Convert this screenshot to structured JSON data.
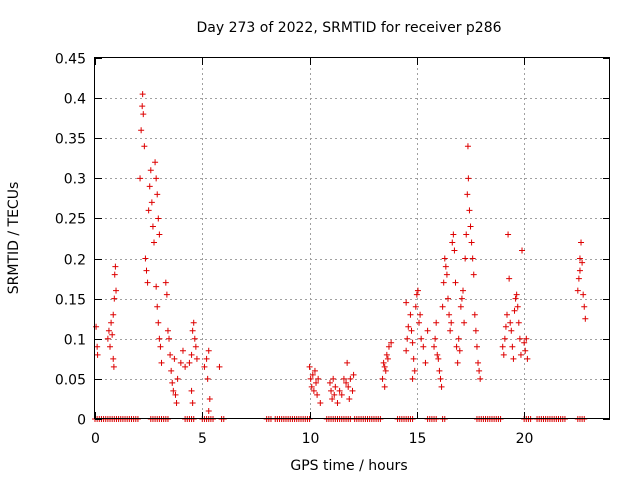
{
  "chart_data": {
    "type": "scatter",
    "title": "Day 273 of 2022, SRMTID for receiver p286",
    "xlabel": "GPS time / hours",
    "ylabel": "SRMTID / TECUs",
    "xlim": [
      0,
      24
    ],
    "ylim": [
      0,
      0.45
    ],
    "xticks": [
      0,
      5,
      10,
      15,
      20
    ],
    "yticks": [
      0,
      0.05,
      0.1,
      0.15,
      0.2,
      0.25,
      0.3,
      0.35,
      0.4,
      0.45
    ],
    "xtick_labels": [
      "0",
      "5",
      "10",
      "15",
      "20"
    ],
    "ytick_labels": [
      "0",
      "0.05",
      "0.1",
      "0.15",
      "0.2",
      "0.25",
      "0.3",
      "0.35",
      "0.4",
      "0.45"
    ],
    "grid": true,
    "marker": "+",
    "color": "#dd0000",
    "series": [
      {
        "name": "SRMTID",
        "points": [
          [
            0.05,
            0.115
          ],
          [
            0.1,
            0.09
          ],
          [
            0.12,
            0.08
          ],
          [
            0.6,
            0.1
          ],
          [
            0.65,
            0.11
          ],
          [
            0.7,
            0.09
          ],
          [
            0.75,
            0.12
          ],
          [
            0.8,
            0.105
          ],
          [
            0.85,
            0.13
          ],
          [
            0.9,
            0.15
          ],
          [
            0.92,
            0.18
          ],
          [
            0.95,
            0.19
          ],
          [
            0.98,
            0.16
          ],
          [
            0.85,
            0.075
          ],
          [
            0.88,
            0.065
          ],
          [
            2.1,
            0.3
          ],
          [
            2.15,
            0.36
          ],
          [
            2.2,
            0.39
          ],
          [
            2.22,
            0.405
          ],
          [
            2.25,
            0.38
          ],
          [
            2.3,
            0.34
          ],
          [
            2.35,
            0.2
          ],
          [
            2.4,
            0.185
          ],
          [
            2.45,
            0.17
          ],
          [
            2.5,
            0.26
          ],
          [
            2.55,
            0.29
          ],
          [
            2.6,
            0.31
          ],
          [
            2.65,
            0.27
          ],
          [
            2.7,
            0.24
          ],
          [
            2.75,
            0.22
          ],
          [
            2.8,
            0.32
          ],
          [
            2.85,
            0.3
          ],
          [
            2.9,
            0.28
          ],
          [
            2.95,
            0.25
          ],
          [
            3.0,
            0.23
          ],
          [
            2.85,
            0.165
          ],
          [
            2.9,
            0.14
          ],
          [
            2.95,
            0.12
          ],
          [
            3.0,
            0.1
          ],
          [
            3.05,
            0.09
          ],
          [
            3.1,
            0.07
          ],
          [
            3.3,
            0.17
          ],
          [
            3.35,
            0.155
          ],
          [
            3.4,
            0.11
          ],
          [
            3.45,
            0.1
          ],
          [
            3.5,
            0.08
          ],
          [
            3.55,
            0.06
          ],
          [
            3.6,
            0.045
          ],
          [
            3.65,
            0.035
          ],
          [
            3.7,
            0.075
          ],
          [
            3.75,
            0.03
          ],
          [
            3.8,
            0.02
          ],
          [
            3.85,
            0.05
          ],
          [
            4.0,
            0.07
          ],
          [
            4.1,
            0.085
          ],
          [
            4.2,
            0.065
          ],
          [
            4.4,
            0.07
          ],
          [
            4.5,
            0.08
          ],
          [
            4.55,
            0.11
          ],
          [
            4.6,
            0.12
          ],
          [
            4.65,
            0.1
          ],
          [
            4.7,
            0.09
          ],
          [
            4.75,
            0.075
          ],
          [
            4.5,
            0.035
          ],
          [
            4.55,
            0.02
          ],
          [
            5.1,
            0.065
          ],
          [
            5.2,
            0.075
          ],
          [
            5.25,
            0.05
          ],
          [
            5.3,
            0.085
          ],
          [
            5.35,
            0.025
          ],
          [
            5.3,
            0.01
          ],
          [
            5.8,
            0.065
          ],
          [
            10.0,
            0.065
          ],
          [
            10.05,
            0.05
          ],
          [
            10.1,
            0.04
          ],
          [
            10.15,
            0.055
          ],
          [
            10.2,
            0.035
          ],
          [
            10.25,
            0.06
          ],
          [
            10.3,
            0.045
          ],
          [
            10.35,
            0.03
          ],
          [
            10.4,
            0.05
          ],
          [
            10.5,
            0.02
          ],
          [
            10.95,
            0.045
          ],
          [
            11.0,
            0.035
          ],
          [
            11.05,
            0.025
          ],
          [
            11.1,
            0.05
          ],
          [
            11.15,
            0.03
          ],
          [
            11.2,
            0.04
          ],
          [
            11.3,
            0.02
          ],
          [
            11.4,
            0.035
          ],
          [
            11.5,
            0.03
          ],
          [
            11.6,
            0.05
          ],
          [
            11.7,
            0.045
          ],
          [
            11.75,
            0.07
          ],
          [
            11.8,
            0.04
          ],
          [
            11.85,
            0.025
          ],
          [
            11.9,
            0.05
          ],
          [
            12.0,
            0.035
          ],
          [
            12.05,
            0.055
          ],
          [
            13.4,
            0.05
          ],
          [
            13.45,
            0.07
          ],
          [
            13.5,
            0.065
          ],
          [
            13.55,
            0.06
          ],
          [
            13.6,
            0.08
          ],
          [
            13.65,
            0.075
          ],
          [
            13.7,
            0.09
          ],
          [
            13.8,
            0.095
          ],
          [
            13.5,
            0.04
          ],
          [
            14.5,
            0.085
          ],
          [
            14.55,
            0.1
          ],
          [
            14.6,
            0.115
          ],
          [
            14.7,
            0.13
          ],
          [
            14.75,
            0.11
          ],
          [
            14.8,
            0.095
          ],
          [
            14.85,
            0.075
          ],
          [
            14.9,
            0.06
          ],
          [
            14.95,
            0.14
          ],
          [
            15.0,
            0.155
          ],
          [
            15.05,
            0.16
          ],
          [
            15.1,
            0.12
          ],
          [
            15.15,
            0.13
          ],
          [
            15.2,
            0.1
          ],
          [
            15.3,
            0.09
          ],
          [
            15.4,
            0.07
          ],
          [
            15.5,
            0.11
          ],
          [
            14.5,
            0.145
          ],
          [
            14.8,
            0.05
          ],
          [
            15.8,
            0.09
          ],
          [
            15.85,
            0.1
          ],
          [
            15.9,
            0.12
          ],
          [
            15.95,
            0.08
          ],
          [
            16.0,
            0.075
          ],
          [
            16.05,
            0.06
          ],
          [
            16.1,
            0.05
          ],
          [
            16.15,
            0.04
          ],
          [
            16.2,
            0.14
          ],
          [
            16.25,
            0.17
          ],
          [
            16.3,
            0.2
          ],
          [
            16.35,
            0.19
          ],
          [
            16.4,
            0.18
          ],
          [
            16.45,
            0.15
          ],
          [
            16.5,
            0.13
          ],
          [
            16.55,
            0.11
          ],
          [
            16.6,
            0.12
          ],
          [
            16.65,
            0.22
          ],
          [
            16.7,
            0.23
          ],
          [
            16.75,
            0.21
          ],
          [
            16.8,
            0.17
          ],
          [
            16.85,
            0.09
          ],
          [
            16.9,
            0.07
          ],
          [
            16.95,
            0.1
          ],
          [
            17.0,
            0.085
          ],
          [
            17.05,
            0.14
          ],
          [
            17.1,
            0.15
          ],
          [
            17.15,
            0.16
          ],
          [
            17.2,
            0.12
          ],
          [
            17.25,
            0.2
          ],
          [
            17.3,
            0.23
          ],
          [
            17.35,
            0.28
          ],
          [
            17.38,
            0.34
          ],
          [
            17.4,
            0.3
          ],
          [
            17.45,
            0.26
          ],
          [
            17.5,
            0.24
          ],
          [
            17.55,
            0.22
          ],
          [
            17.6,
            0.2
          ],
          [
            17.65,
            0.18
          ],
          [
            17.7,
            0.13
          ],
          [
            17.75,
            0.11
          ],
          [
            17.8,
            0.09
          ],
          [
            17.85,
            0.07
          ],
          [
            17.9,
            0.06
          ],
          [
            17.95,
            0.05
          ],
          [
            19.0,
            0.09
          ],
          [
            19.05,
            0.08
          ],
          [
            19.1,
            0.1
          ],
          [
            19.15,
            0.115
          ],
          [
            19.2,
            0.13
          ],
          [
            19.25,
            0.23
          ],
          [
            19.3,
            0.175
          ],
          [
            19.35,
            0.12
          ],
          [
            19.4,
            0.11
          ],
          [
            19.45,
            0.09
          ],
          [
            19.5,
            0.075
          ],
          [
            19.55,
            0.135
          ],
          [
            19.6,
            0.15
          ],
          [
            19.65,
            0.155
          ],
          [
            19.7,
            0.14
          ],
          [
            19.75,
            0.12
          ],
          [
            19.8,
            0.1
          ],
          [
            19.85,
            0.08
          ],
          [
            19.9,
            0.21
          ],
          [
            20.0,
            0.095
          ],
          [
            20.05,
            0.085
          ],
          [
            20.1,
            0.1
          ],
          [
            20.15,
            0.075
          ],
          [
            22.5,
            0.16
          ],
          [
            22.55,
            0.175
          ],
          [
            22.6,
            0.2
          ],
          [
            22.65,
            0.22
          ],
          [
            22.7,
            0.195
          ],
          [
            22.75,
            0.155
          ],
          [
            22.8,
            0.14
          ],
          [
            22.85,
            0.125
          ],
          [
            22.6,
            0.185
          ]
        ]
      }
    ],
    "zero_band": [
      [
        0.0,
        1.6
      ],
      [
        1.7,
        2.0
      ],
      [
        2.6,
        3.4
      ],
      [
        4.2,
        4.6
      ],
      [
        5.0,
        5.5
      ],
      [
        5.9,
        6.0
      ],
      [
        8.0,
        8.2
      ],
      [
        8.4,
        10.0
      ],
      [
        10.8,
        11.9
      ],
      [
        12.1,
        13.3
      ],
      [
        14.1,
        14.8
      ],
      [
        15.5,
        15.9
      ],
      [
        16.2,
        16.3
      ],
      [
        17.8,
        18.9
      ],
      [
        20.0,
        20.3
      ],
      [
        20.6,
        21.9
      ],
      [
        22.5,
        22.8
      ]
    ]
  }
}
